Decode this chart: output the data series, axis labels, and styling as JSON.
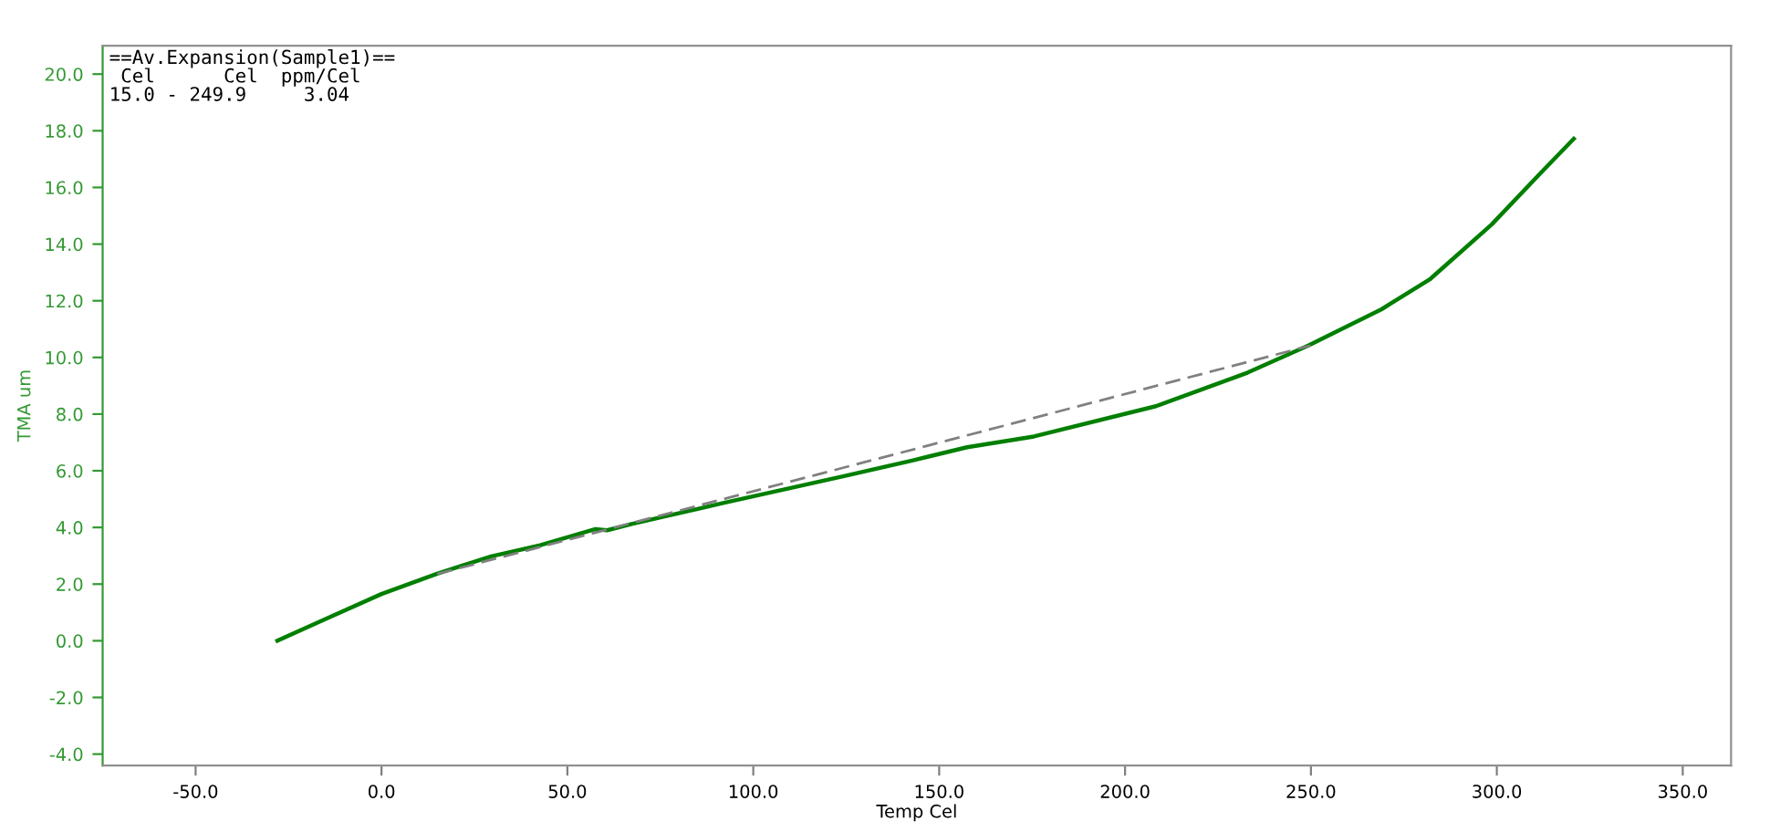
{
  "chart_data": {
    "type": "line",
    "xlabel": "Temp Cel",
    "ylabel": "TMA um",
    "annotations": [
      "==Av.Expansion(Sample1)==\n Cel      Cel  ppm/Cel\n15.0 - 249.9     3.04"
    ],
    "series": [
      {
        "color": "#007f00",
        "line_style": "solid",
        "x": [
          -28,
          -16.4,
          0,
          14.8,
          29.5,
          42.7,
          57.4,
          60.7,
          67.3,
          91.9,
          124.7,
          142.7,
          157.5,
          175.5,
          208.3,
          232.9,
          249.3,
          269,
          282.1,
          298.6,
          311.7,
          320.7
        ],
        "values": [
          0,
          0.69,
          1.65,
          2.36,
          2.98,
          3.37,
          3.94,
          3.9,
          4.12,
          4.86,
          5.82,
          6.36,
          6.83,
          7.21,
          8.28,
          9.46,
          10.42,
          11.7,
          12.77,
          14.69,
          16.5,
          17.72
        ]
      },
      {
        "color": "#808080",
        "line_style": "dashed",
        "x": [
          15.0,
          249.9
        ],
        "values": [
          2.36,
          10.42
        ]
      }
    ],
    "xlim": [
      -75,
      363
    ],
    "ylim": [
      -4.4,
      21
    ],
    "xticks": [
      {
        "value": -50,
        "label": "-50.0"
      },
      {
        "value": 0,
        "label": "0.0"
      },
      {
        "value": 50,
        "label": "50.0"
      },
      {
        "value": 100,
        "label": "100.0"
      },
      {
        "value": 150,
        "label": "150.0"
      },
      {
        "value": 200,
        "label": "200.0"
      },
      {
        "value": 250,
        "label": "250.0"
      },
      {
        "value": 300,
        "label": "300.0"
      },
      {
        "value": 350,
        "label": "350.0"
      }
    ],
    "yticks": [
      {
        "value": -4,
        "label": "-4.0"
      },
      {
        "value": -2,
        "label": "-2.0"
      },
      {
        "value": 0,
        "label": "0.0"
      },
      {
        "value": 2,
        "label": "2.0"
      },
      {
        "value": 4,
        "label": "4.0"
      },
      {
        "value": 6,
        "label": "6.0"
      },
      {
        "value": 8,
        "label": "8.0"
      },
      {
        "value": 10,
        "label": "10.0"
      },
      {
        "value": 12,
        "label": "12.0"
      },
      {
        "value": 14,
        "label": "14.0"
      },
      {
        "value": 16,
        "label": "16.0"
      },
      {
        "value": 18,
        "label": "18.0"
      },
      {
        "value": 20,
        "label": "20.0"
      }
    ],
    "grid": false,
    "legend": false
  }
}
